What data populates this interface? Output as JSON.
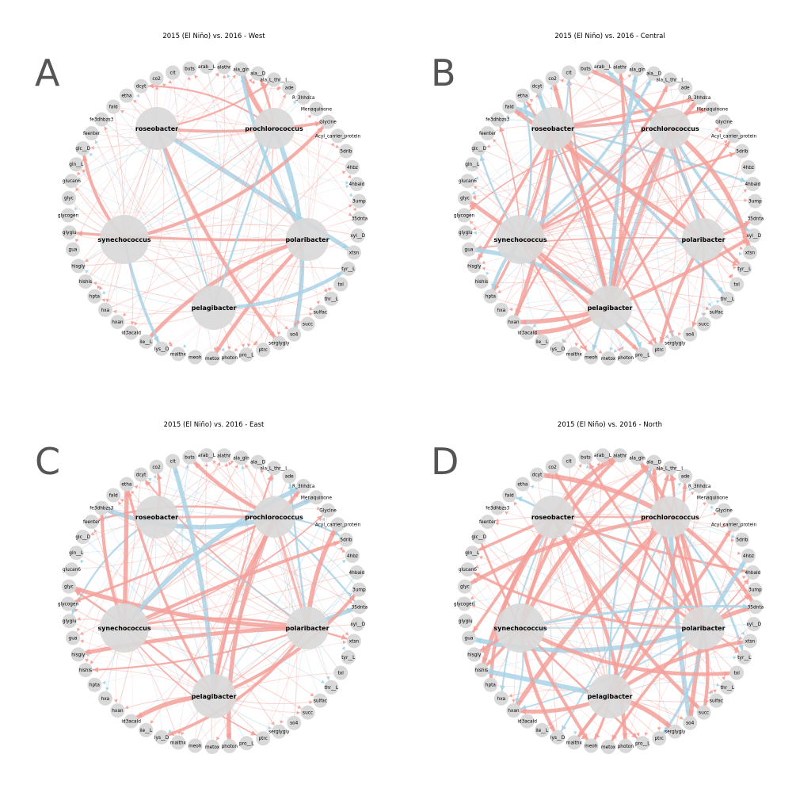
{
  "figure": {
    "panels": [
      {
        "letter": "A",
        "title": "2015 (El Niño) vs. 2016 - West"
      },
      {
        "letter": "B",
        "title": "2015 (El Niño) vs. 2016 - Central"
      },
      {
        "letter": "C",
        "title": "2015 (El Niño) vs. 2016 - East"
      },
      {
        "letter": "D",
        "title": "2015 (El Niño) vs. 2016 - North"
      }
    ],
    "hubs": [
      "roseobacter",
      "prochlorococcus",
      "polaribacter",
      "pelagibacter",
      "synechococcus"
    ],
    "metabolites": [
      "alathr",
      "ala_gln",
      "ala__D",
      "ala_L_thr__L",
      "ade",
      "R_3hhdca",
      "Menaquinone",
      "Glycine",
      "Acyl_carrier_protein",
      "5drib",
      "4hbz",
      "4hbald",
      "3ump",
      "35dnta",
      "xyl__D",
      "xtsn",
      "tyr__L",
      "tol",
      "thr__L",
      "sulfac",
      "succ",
      "so4",
      "serglygly",
      "ptrc",
      "pro__L",
      "photon",
      "metox",
      "meoh",
      "malthx",
      "lys__D",
      "ile__L",
      "id3acald",
      "hxan",
      "hxa",
      "hpta",
      "hishis",
      "hisgly",
      "gua",
      "glyglu",
      "glycogen",
      "glyc",
      "glucan6",
      "gln__L",
      "glc__D",
      "feenter",
      "fe3dhbzs3",
      "fald",
      "etha",
      "dcyt",
      "co2",
      "cit",
      "buts",
      "arab__L"
    ],
    "colors": {
      "positive": "#f4a09a",
      "negative": "#a9d4e6",
      "node": "#d9d9d9",
      "letter": "#555555"
    }
  }
}
